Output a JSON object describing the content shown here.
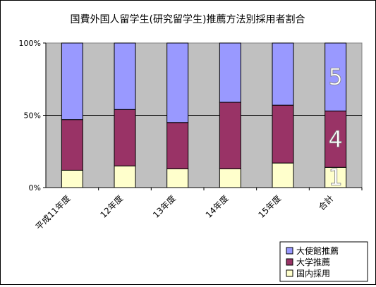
{
  "chart_data": {
    "type": "bar",
    "stacked": true,
    "title": "国費外国人留学生(研究留学生)推薦方法別採用者割合",
    "categories": [
      "平成11年度",
      "12年度",
      "13年度",
      "14年度",
      "15年度",
      "合計"
    ],
    "series": [
      {
        "name": "国内採用",
        "color": "#ffffcc",
        "values": [
          12,
          15,
          13,
          13,
          17,
          14
        ]
      },
      {
        "name": "大学推薦",
        "color": "#993366",
        "values": [
          35,
          39,
          32,
          46,
          40,
          39
        ]
      },
      {
        "name": "大使館推薦",
        "color": "#9999ff",
        "values": [
          53,
          46,
          55,
          41,
          43,
          47
        ]
      }
    ],
    "ylim": [
      0,
      100
    ],
    "yticks": [
      "0%",
      "50%",
      "100%"
    ],
    "grid": true,
    "plot_background": "#c0c0c0",
    "legend_position": "bottom-right",
    "annotations": [
      "1",
      "4",
      "5"
    ]
  }
}
